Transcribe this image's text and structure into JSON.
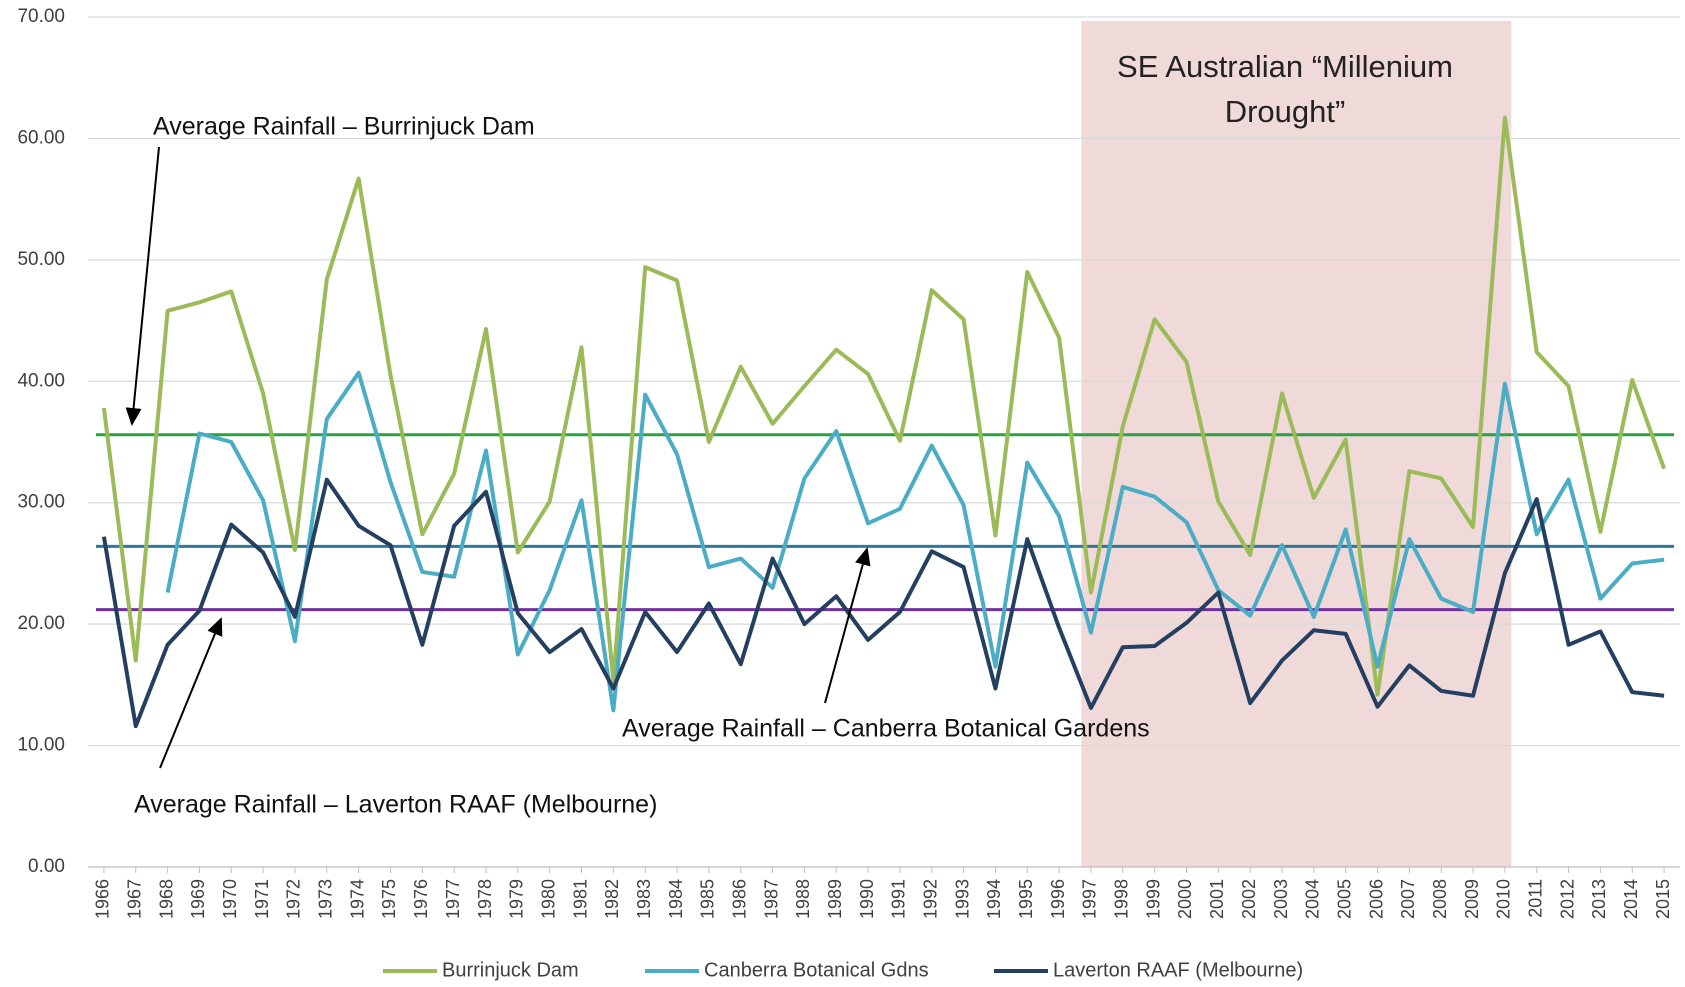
{
  "chart_data": {
    "type": "line",
    "x": [
      1966,
      1967,
      1968,
      1969,
      1970,
      1971,
      1972,
      1973,
      1974,
      1975,
      1976,
      1977,
      1978,
      1979,
      1980,
      1981,
      1982,
      1983,
      1984,
      1985,
      1986,
      1987,
      1988,
      1989,
      1990,
      1991,
      1992,
      1993,
      1994,
      1995,
      1996,
      1997,
      1998,
      1999,
      2000,
      2001,
      2002,
      2003,
      2004,
      2005,
      2006,
      2007,
      2008,
      2009,
      2010,
      2011,
      2012,
      2013,
      2014,
      2015
    ],
    "xlim": [
      1965.5,
      2015.5
    ],
    "series": [
      {
        "name": "Burrinjuck Dam",
        "color": "#9bbb59",
        "values": [
          37.8,
          17.0,
          45.8,
          46.5,
          47.4,
          39.0,
          26.1,
          48.4,
          56.7,
          40.5,
          27.4,
          32.4,
          44.3,
          25.9,
          30.1,
          42.8,
          15.3,
          49.4,
          48.3,
          35.0,
          41.2,
          36.5,
          39.6,
          42.6,
          40.6,
          35.1,
          47.5,
          45.1,
          27.3,
          49.0,
          43.6,
          22.6,
          36.3,
          45.1,
          41.6,
          30.1,
          25.7,
          39.0,
          30.4,
          35.2,
          14.2,
          32.6,
          32.0,
          28.0,
          61.7,
          42.4,
          39.6,
          27.6,
          40.1,
          32.8
        ]
      },
      {
        "name": "Canberra Botanical Gdns",
        "color": "#4bacc6",
        "values": [
          null,
          null,
          22.6,
          35.7,
          35.0,
          30.2,
          18.6,
          36.9,
          40.7,
          31.7,
          24.3,
          23.9,
          34.3,
          17.5,
          22.8,
          30.2,
          12.9,
          38.9,
          34.0,
          24.7,
          25.4,
          23.0,
          32.0,
          35.9,
          28.3,
          29.5,
          34.7,
          29.8,
          16.5,
          33.3,
          28.9,
          19.3,
          31.3,
          30.5,
          28.4,
          22.8,
          20.7,
          26.5,
          20.6,
          27.8,
          16.5,
          27.0,
          22.1,
          21.0,
          39.8,
          27.4,
          31.9,
          22.1,
          25.0,
          25.3
        ]
      },
      {
        "name": "Laverton RAAF (Melbourne)",
        "color": "#243f60",
        "values": [
          27.2,
          11.6,
          18.3,
          21.1,
          28.2,
          25.9,
          20.6,
          31.9,
          28.1,
          26.5,
          18.3,
          28.1,
          30.9,
          20.9,
          17.7,
          19.6,
          14.7,
          21.0,
          17.7,
          21.7,
          16.7,
          25.4,
          20.0,
          22.3,
          18.7,
          21.0,
          26.0,
          24.7,
          14.7,
          27.0,
          19.7,
          13.1,
          18.1,
          18.2,
          20.1,
          22.6,
          13.5,
          17.0,
          19.5,
          19.2,
          13.2,
          16.6,
          14.5,
          14.1,
          24.2,
          30.3,
          18.3,
          19.4,
          14.4,
          14.1
        ]
      }
    ],
    "reference_lines": [
      {
        "value": 35.6,
        "color": "#2aa147",
        "label": "Average Rainfall – Burrinjuck Dam"
      },
      {
        "value": 26.4,
        "color": "#2e7a94",
        "label": "Average Rainfall – Canberra Botanical Gardens"
      },
      {
        "value": 21.2,
        "color": "#7030a0",
        "label": "Average Rainfall – Laverton RAAF (Melbourne)"
      }
    ],
    "shaded_region": {
      "from": 1996.7,
      "to": 2010.2,
      "color": "#f0d9d9",
      "label": [
        "SE Australian “Millenium",
        "Drought”"
      ]
    },
    "ylim": [
      0,
      70
    ],
    "yticks": [
      {
        "value": 0,
        "label": "0.00"
      },
      {
        "value": 10,
        "label": "10.00"
      },
      {
        "value": 20,
        "label": "20.00"
      },
      {
        "value": 30,
        "label": "30.00"
      },
      {
        "value": 40,
        "label": "40.00"
      },
      {
        "value": 50,
        "label": "50.00"
      },
      {
        "value": 60,
        "label": "60.00"
      },
      {
        "value": 70,
        "label": "70.00"
      }
    ],
    "grid": true,
    "legend": "bottom"
  }
}
